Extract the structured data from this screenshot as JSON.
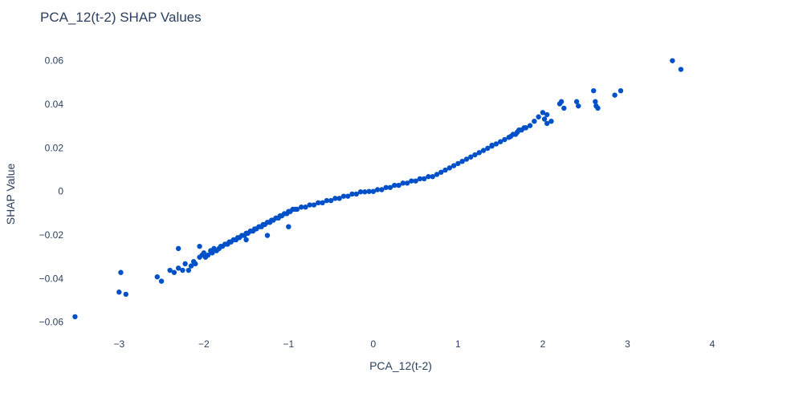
{
  "chart_data": {
    "type": "scatter",
    "title": "PCA_12(t-2) SHAP Values",
    "xlabel": "PCA_12(t-2)",
    "ylabel": "SHAP Value",
    "xlim": [
      -3.6,
      4.55
    ],
    "ylim": [
      -0.066,
      0.0665
    ],
    "x_ticks": [
      -3,
      -2,
      -1,
      0,
      1,
      2,
      3,
      4
    ],
    "x_tick_labels": [
      "−3",
      "−2",
      "−1",
      "0",
      "1",
      "2",
      "3",
      "4"
    ],
    "y_ticks": [
      -0.06,
      -0.04,
      -0.02,
      0,
      0.02,
      0.04,
      0.06
    ],
    "y_tick_labels": [
      "−0.06",
      "−0.04",
      "−0.02",
      "0",
      "0.02",
      "0.04",
      "0.06"
    ],
    "grid": false,
    "marker_color": "#0050c8",
    "x": [
      -3.52,
      -3.0,
      -2.98,
      -2.92,
      -2.55,
      -2.5,
      -2.4,
      -2.35,
      -2.3,
      -2.25,
      -2.22,
      -2.18,
      -2.15,
      -2.12,
      -2.1,
      -2.05,
      -2.02,
      -2.0,
      -1.98,
      -1.95,
      -1.92,
      -1.9,
      -1.88,
      -1.85,
      -1.82,
      -1.8,
      -1.78,
      -1.75,
      -1.72,
      -1.7,
      -1.68,
      -1.65,
      -1.62,
      -1.6,
      -1.58,
      -1.55,
      -1.52,
      -1.5,
      -1.48,
      -1.45,
      -1.42,
      -1.4,
      -1.38,
      -1.35,
      -1.32,
      -1.3,
      -1.28,
      -1.25,
      -1.22,
      -1.2,
      -1.18,
      -1.15,
      -1.12,
      -1.1,
      -1.08,
      -1.05,
      -1.02,
      -1.0,
      -0.98,
      -0.95,
      -0.92,
      -0.9,
      -0.85,
      -0.8,
      -0.75,
      -0.7,
      -0.65,
      -0.6,
      -0.55,
      -0.5,
      -0.45,
      -0.4,
      -0.35,
      -0.3,
      -0.25,
      -0.2,
      -0.15,
      -0.1,
      -0.05,
      0.0,
      0.05,
      0.1,
      0.15,
      0.2,
      0.25,
      0.3,
      0.35,
      0.4,
      0.45,
      0.5,
      0.55,
      0.6,
      0.65,
      0.7,
      0.75,
      0.8,
      0.85,
      0.9,
      0.95,
      1.0,
      1.05,
      1.1,
      1.15,
      1.2,
      1.25,
      1.3,
      1.35,
      1.4,
      1.45,
      1.5,
      1.55,
      1.6,
      1.62,
      1.65,
      1.68,
      1.7,
      1.72,
      1.75,
      1.78,
      1.8,
      1.85,
      1.9,
      1.95,
      2.0,
      2.02,
      2.05,
      2.1,
      2.2,
      2.22,
      2.25,
      2.4,
      2.42,
      2.6,
      2.62,
      2.63,
      2.65,
      2.85,
      2.92,
      3.53,
      3.63,
      -1.25,
      -1.0,
      -2.3,
      -2.05,
      -1.5,
      1.4,
      1.7,
      2.05
    ],
    "y": [
      -0.0575,
      -0.0462,
      -0.0372,
      -0.0472,
      -0.0392,
      -0.0412,
      -0.0362,
      -0.0372,
      -0.0352,
      -0.0362,
      -0.0332,
      -0.0362,
      -0.0342,
      -0.0322,
      -0.0332,
      -0.0302,
      -0.0292,
      -0.0282,
      -0.0302,
      -0.0292,
      -0.0272,
      -0.0282,
      -0.0262,
      -0.0272,
      -0.0262,
      -0.0252,
      -0.0252,
      -0.0242,
      -0.0242,
      -0.0232,
      -0.0232,
      -0.0222,
      -0.0222,
      -0.0212,
      -0.0212,
      -0.0202,
      -0.0202,
      -0.0192,
      -0.0192,
      -0.0182,
      -0.0182,
      -0.0172,
      -0.0172,
      -0.0162,
      -0.0162,
      -0.0152,
      -0.0152,
      -0.0142,
      -0.0142,
      -0.0132,
      -0.0132,
      -0.0122,
      -0.0122,
      -0.0112,
      -0.0112,
      -0.0102,
      -0.0102,
      -0.0092,
      -0.0092,
      -0.0082,
      -0.0082,
      -0.0082,
      -0.0072,
      -0.0072,
      -0.0062,
      -0.0062,
      -0.0052,
      -0.0052,
      -0.0042,
      -0.0042,
      -0.0032,
      -0.0032,
      -0.0022,
      -0.0022,
      -0.0012,
      -0.0012,
      -0.0002,
      -0.0002,
      0.0,
      0.0,
      0.0008,
      0.0008,
      0.0018,
      0.0018,
      0.0028,
      0.0028,
      0.0038,
      0.0038,
      0.0048,
      0.0048,
      0.0058,
      0.0058,
      0.0068,
      0.0068,
      0.0078,
      0.0088,
      0.0098,
      0.0108,
      0.0118,
      0.0128,
      0.0138,
      0.0148,
      0.0158,
      0.0168,
      0.0178,
      0.0188,
      0.0198,
      0.0208,
      0.0218,
      0.0228,
      0.0238,
      0.0248,
      0.0252,
      0.0262,
      0.0262,
      0.0272,
      0.0282,
      0.0282,
      0.0292,
      0.0292,
      0.0302,
      0.0322,
      0.0342,
      0.0362,
      0.0332,
      0.0352,
      0.0322,
      0.0402,
      0.0412,
      0.0382,
      0.0412,
      0.0392,
      0.0462,
      0.0412,
      0.0392,
      0.0382,
      0.0442,
      0.0462,
      0.06,
      0.056,
      -0.0202,
      -0.0162,
      -0.0262,
      -0.0252,
      -0.0222,
      0.0212,
      0.0272,
      0.0312
    ]
  }
}
